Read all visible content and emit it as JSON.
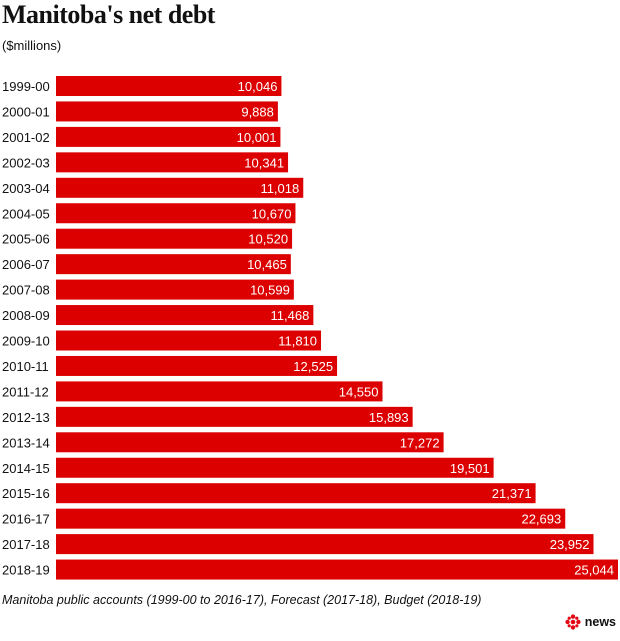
{
  "header": {
    "title": "Manitoba's net debt",
    "subtitle": "($millions)"
  },
  "footer": {
    "source": "Manitoba public accounts (1999-00 to 2016-17), Forecast (2017-18), Budget (2018-19)",
    "brand": "news"
  },
  "colors": {
    "bar": "#dc0000",
    "brand_red": "#e30613"
  },
  "icons": {
    "brand": "cbc-gem-icon"
  },
  "chart_data": {
    "type": "bar",
    "orientation": "horizontal",
    "title": "Manitoba's net debt",
    "subtitle": "($millions)",
    "xlabel": "",
    "ylabel": "",
    "xlim": [
      0,
      25044
    ],
    "grid": false,
    "categories": [
      "1999-00",
      "2000-01",
      "2001-02",
      "2002-03",
      "2003-04",
      "2004-05",
      "2005-06",
      "2006-07",
      "2007-08",
      "2008-09",
      "2009-10",
      "2010-11",
      "2011-12",
      "2012-13",
      "2013-14",
      "2014-15",
      "2015-16",
      "2016-17",
      "2017-18",
      "2018-19"
    ],
    "values": [
      10046,
      9888,
      10001,
      10341,
      11018,
      10670,
      10520,
      10465,
      10599,
      11468,
      11810,
      12525,
      14550,
      15893,
      17272,
      19501,
      21371,
      22693,
      23952,
      25044
    ],
    "value_labels": [
      "10,046",
      "9,888",
      "10,001",
      "10,341",
      "11,018",
      "10,670",
      "10,520",
      "10,465",
      "10,599",
      "11,468",
      "11,810",
      "12,525",
      "14,550",
      "15,893",
      "17,272",
      "19,501",
      "21,371",
      "22,693",
      "23,952",
      "25,044"
    ]
  }
}
